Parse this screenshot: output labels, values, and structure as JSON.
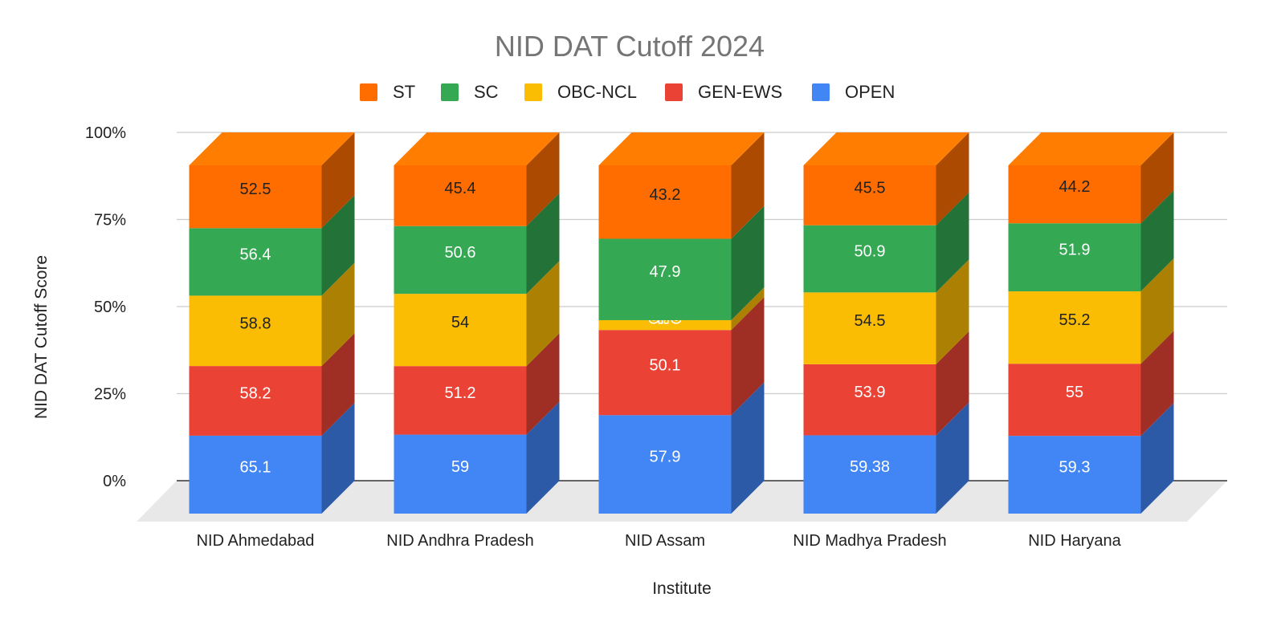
{
  "chart_data": {
    "type": "bar",
    "stacked": true,
    "normalized": true,
    "three_d": true,
    "title": "NID DAT Cutoff 2024",
    "xlabel": "Institute",
    "ylabel": "NID DAT Cutoff Score",
    "categories": [
      "NID Ahmedabad",
      "NID Andhra Pradesh",
      "NID Assam",
      "NID Madhya Pradesh",
      "NID Haryana"
    ],
    "series": [
      {
        "name": "OPEN",
        "color": "#4285f4",
        "values": [
          65.1,
          59,
          57.9,
          59.38,
          59.3
        ],
        "labels": [
          "65.1",
          "59",
          "57.9",
          "59.38",
          "59.3"
        ]
      },
      {
        "name": "GEN-EWS",
        "color": "#ea4335",
        "values": [
          58.2,
          51.2,
          50.1,
          53.9,
          55
        ],
        "labels": [
          "58.2",
          "51.2",
          "50.1",
          "53.9",
          "55"
        ]
      },
      {
        "name": "OBC-NCL",
        "color": "#fbbc04",
        "values": [
          58.8,
          54,
          5.78,
          54.5,
          55.2
        ],
        "labels": [
          "58.8",
          "54",
          "5.78",
          "54.5",
          "55.2"
        ]
      },
      {
        "name": "SC",
        "color": "#34a853",
        "values": [
          56.4,
          50.6,
          47.9,
          50.9,
          51.9
        ],
        "labels": [
          "56.4",
          "50.6",
          "47.9",
          "50.9",
          "51.9"
        ]
      },
      {
        "name": "ST",
        "color": "#ff6d01",
        "values": [
          52.5,
          45.4,
          43.2,
          45.5,
          44.2
        ],
        "labels": [
          "52.5",
          "45.4",
          "43.2",
          "45.5",
          "44.2"
        ]
      }
    ],
    "legend_order": [
      "ST",
      "SC",
      "OBC-NCL",
      "GEN-EWS",
      "OPEN"
    ],
    "yticks": [
      "0%",
      "25%",
      "50%",
      "75%",
      "100%"
    ],
    "ylim": [
      0,
      100
    ],
    "grid": true,
    "legend_position": "top"
  }
}
